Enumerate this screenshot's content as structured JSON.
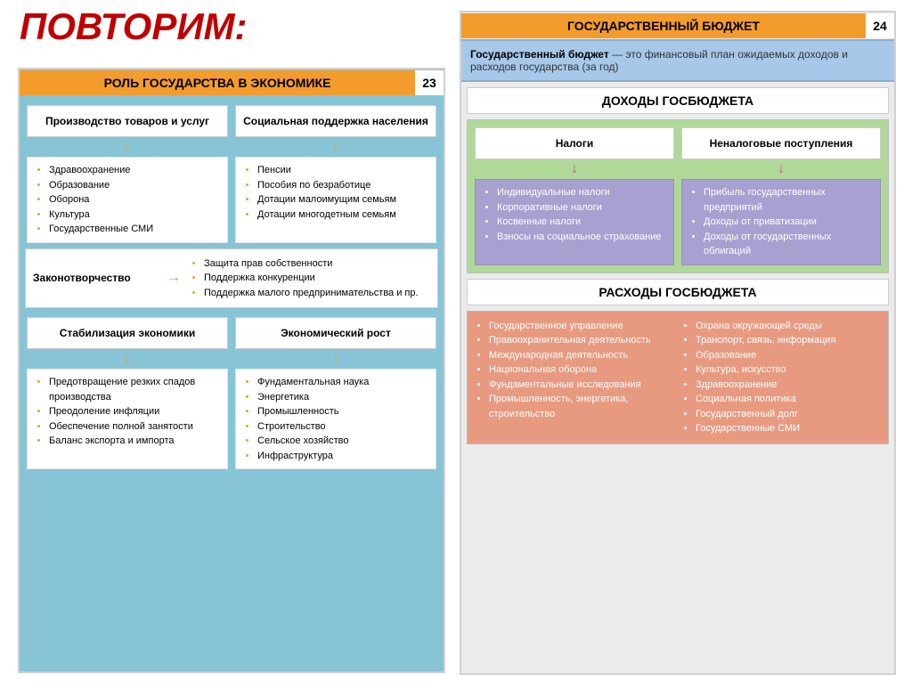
{
  "title": "ПОВТОРИМ:",
  "title_color": "#c00000",
  "left": {
    "header": "РОЛЬ ГОСУДАРСТВА В ЭКОНОМИКЕ",
    "page_num": "23",
    "block1": {
      "col1_title": "Производство товаров и услуг",
      "col2_title": "Социальная поддержка населения",
      "col1_items": [
        "Здравоохранение",
        "Образование",
        "Оборона",
        "Культура",
        "Государственные СМИ"
      ],
      "col2_items": [
        "Пенсии",
        "Пособия по безработице",
        "Дотации малоимущим семьям",
        "Дотации многодетным семьям"
      ]
    },
    "law": {
      "label": "Законотворчество",
      "items": [
        "Защита прав собственности",
        "Поддержка конкуренции",
        "Поддержка малого предпринимательства и пр."
      ]
    },
    "block2": {
      "col1_title": "Стабилизация экономики",
      "col2_title": "Экономический рост",
      "col1_items": [
        "Предотвращение резких спадов производства",
        "Преодоление инфляции",
        "Обеспечение полной занятости",
        "Баланс экспорта и импорта"
      ],
      "col2_items": [
        "Фундаментальная наука",
        "Энергетика",
        "Промышленность",
        "Строительство",
        "Сельское хозяйство",
        "Инфраструктура"
      ]
    }
  },
  "right": {
    "header": "ГОСУДАРСТВЕННЫЙ БЮДЖЕТ",
    "page_num": "24",
    "definition_bold": "Государственный бюджет",
    "definition_rest": " — это финансовый план ожидаемых доходов и расходов государства (за год)",
    "income": {
      "title": "ДОХОДЫ ГОСБЮДЖЕТА",
      "col1_title": "Налоги",
      "col2_title": "Неналоговые поступления",
      "col1_items": [
        "Индивидуальные налоги",
        "Корпоративные налоги",
        "Косвенные налоги",
        "Взносы на социальное страхование"
      ],
      "col2_items": [
        "Прибыль государственных предприятий",
        "Доходы от приватизации",
        "Доходы от государственных облигаций"
      ]
    },
    "expense": {
      "title": "РАСХОДЫ ГОСБЮДЖЕТА",
      "col1_items": [
        "Государственное управление",
        "Правоохранительная деятельность",
        "Международная деятельность",
        "Национальная оборона",
        "Фундаментальные исследования",
        "Промышленность, энергетика, строительство"
      ],
      "col2_items": [
        "Охрана окружающей среды",
        "Транспорт, связь, информация",
        "Образование",
        "Культура, искусство",
        "Здравоохранение",
        "Социальная политика",
        "Государственный долг",
        "Государственные СМИ"
      ]
    }
  },
  "colors": {
    "orange": "#f39c2c",
    "blue_bg": "#87c4d6",
    "green_bg": "#b0d898",
    "purple": "#a8a0d0",
    "salmon": "#e89a80",
    "pink_arrow": "#d94fa0"
  }
}
